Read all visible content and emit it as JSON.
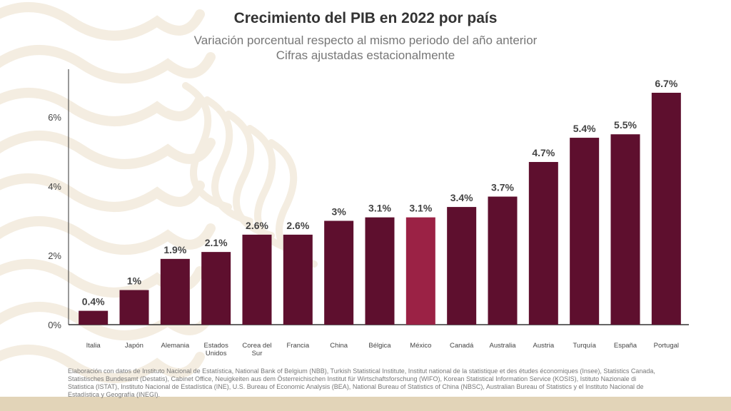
{
  "colors": {
    "bar": "#5e0f2e",
    "highlight": "#9b2245",
    "footer": "#e2d4b8",
    "pattern": "#f4ede1"
  },
  "chart_data": {
    "type": "bar",
    "title": "Crecimiento del PIB en 2022 por país",
    "subtitle": [
      "Variación porcentual respecto al mismo periodo del año anterior",
      "Cifras ajustadas estacionalmente"
    ],
    "categories": [
      [
        "Italia"
      ],
      [
        "Japón"
      ],
      [
        "Alemania"
      ],
      [
        "Estados",
        "Unidos"
      ],
      [
        "Corea del",
        "Sur"
      ],
      [
        "Francia"
      ],
      [
        "China"
      ],
      [
        "Bélgica"
      ],
      [
        "México"
      ],
      [
        "Canadá"
      ],
      [
        "Australia"
      ],
      [
        "Austria"
      ],
      [
        "Turquía"
      ],
      [
        "España"
      ],
      [
        "Portugal"
      ]
    ],
    "values": [
      0.4,
      1,
      1.9,
      2.1,
      2.6,
      2.6,
      3,
      3.1,
      3.1,
      3.4,
      3.7,
      4.7,
      5.4,
      5.5,
      6.7
    ],
    "data_labels": [
      "0.4%",
      "1%",
      "1.9%",
      "2.1%",
      "2.6%",
      "2.6%",
      "3%",
      "3.1%",
      "3.1%",
      "3.4%",
      "3.7%",
      "4.7%",
      "5.4%",
      "5.5%",
      "6.7%"
    ],
    "highlight_category": "México",
    "yticks": [
      0,
      2,
      4,
      6
    ],
    "ytick_labels": [
      "0%",
      "2%",
      "4%",
      "6%"
    ],
    "ylim": [
      0,
      7.5
    ],
    "grid": false,
    "xlabel": "",
    "ylabel": ""
  },
  "source": "Elaboración con datos de Instituto Nacional de Estatística, National Bank of Belgium (NBB), Turkish Statistical Institute, Institut national de la statistique et des études économiques (Insee), Statistics Canada, Statistisches Bundesamt (Destatis), Cabinet Office, Neuigkeiten aus dem Österreichischen Institut für Wirtschaftsforschung (WIFO), Korean Statistical Information Service (KOSIS), Istituto Nazionale di Statistica (ISTAT), Instituto Nacional de Estadística (INE), U.S. Bureau of Economic Analysis (BEA), National Bureau of Statistics of China (NBSC), Australian Bureau of Statistics y el Instituto Nacional de Estadística y Geografía (INEGI)."
}
